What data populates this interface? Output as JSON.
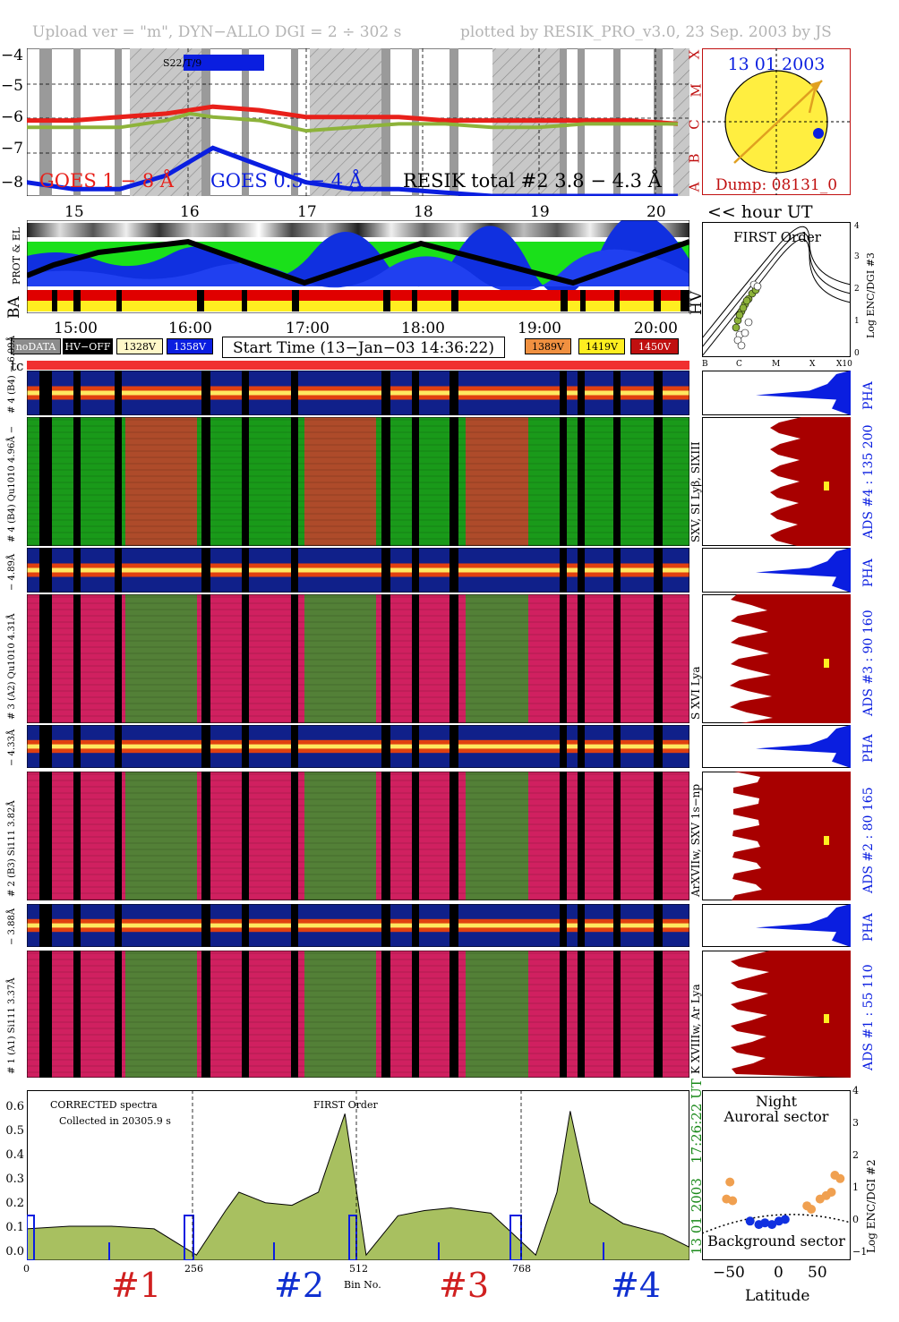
{
  "header": {
    "upload": "Upload ver = \"m\", DYN−ALLO DGI =   2 ÷ 302 s",
    "plotted": "plotted by RESIK_PRO_v3.0, 23 Sep. 2003 by JS"
  },
  "goes_panel": {
    "yticks": [
      "−4",
      "−5",
      "−6",
      "−7",
      "−8"
    ],
    "classes": [
      "A",
      "B",
      "C",
      "M",
      "X"
    ],
    "legend_goes18": "GOES 1 − 8 Å",
    "legend_goes054": "GOES 0.5 − 4 Å",
    "legend_resik": "RESIK total #2  3.8 − 4.3 Å",
    "saa_tag": "S22/T/9",
    "hours": [
      "15",
      "16",
      "17",
      "18",
      "19",
      "20"
    ],
    "hour_ut": "<< hour UT",
    "colors": {
      "goes18": "#e8201a",
      "goes054": "#0a1ee0",
      "resik": "#8db33a"
    }
  },
  "sun_panel": {
    "date": "13 01 2003",
    "dump": "Dump: 08131_0"
  },
  "status_panel": {
    "prot_el": "PROT & EL",
    "ba": "BA",
    "hv": "HV"
  },
  "time_axis": [
    "15:00",
    "16:00",
    "17:00",
    "18:00",
    "19:00",
    "20:00"
  ],
  "legend": {
    "nodata": "noDATA",
    "hvoff": "HV−OFF",
    "v1328": "1328V",
    "v1358": "1358V",
    "start_time": "Start Time (13−Jan−03 14:36:22)",
    "v1389": "1389V",
    "v1419": "1419V",
    "v1450": "1450V",
    "tc": "tc"
  },
  "first_order_panel": {
    "title": "FIRST Order",
    "ylabel": "Log ENC/DGI #3",
    "yticks": [
      "0",
      "1",
      "2",
      "3",
      "4"
    ],
    "xticks": [
      "B",
      "C",
      "M",
      "X",
      "X10"
    ]
  },
  "channels": [
    {
      "pha_label": "# 4 (B4)  − 6.09Å",
      "label": "# 4 (B4) Qu1010 4.96Å −",
      "lines": "SXV, SI Lyβ, SIXIII",
      "ads": "ADS #4 :  135 200"
    },
    {
      "pha_label": "− 4.89Å",
      "label": "# 3 (A2) Qu1010 4.31Å",
      "lines": "S XVI Lya",
      "ads": "ADS #3 :  90 160"
    },
    {
      "pha_label": "− 4.33Å",
      "label": "# 2 (B3) Si111 3.82Å",
      "lines": "ArXVIIw, SXV 1s−np",
      "ads": "ADS #2 :  80 165"
    },
    {
      "pha_label": "− 3.88Å",
      "label": "# 1 (A1) Si111 3.37Å",
      "lines": "K XVIIIw, Ar Lya",
      "ads": "ADS #1 :  55 110"
    }
  ],
  "pha": "PHA",
  "spectrum_panel": {
    "corrected": "CORRECTED spectra",
    "collected": "Collected in 20305.9 s",
    "first_order": "FIRST Order",
    "yticks": [
      "0.0",
      "0.1",
      "0.2",
      "0.3",
      "0.4",
      "0.5",
      "0.6"
    ],
    "xticks": [
      "0",
      "256",
      "512",
      "768"
    ],
    "xlabel": "Bin No.",
    "timestamp_date": "13 01 2003",
    "timestamp_time": "17:26:22 UT"
  },
  "detectors": [
    "#1",
    "#2",
    "#3",
    "#4"
  ],
  "lat_panel": {
    "title1": "Night",
    "title2": "Auroral sector",
    "background": "Background sector",
    "ylabel": "Log ENC/DGI #2",
    "yticks": [
      "−1",
      "0",
      "1",
      "2",
      "3",
      "4"
    ],
    "xticks": [
      "−50",
      "0",
      "50"
    ],
    "xlabel": "Latitude"
  },
  "chart_data": [
    {
      "type": "line",
      "title": "",
      "xlabel": "hour UT",
      "x": [
        14.6,
        15.0,
        15.4,
        15.8,
        16.0,
        16.2,
        16.6,
        17.0,
        17.4,
        17.8,
        18.2,
        18.6,
        19.0,
        19.4,
        19.8,
        20.2
      ],
      "series": [
        {
          "name": "GOES 1 − 8 Å",
          "values": [
            -6.0,
            -6.0,
            -5.9,
            -5.8,
            -5.7,
            -5.6,
            -5.7,
            -5.9,
            -5.9,
            -5.9,
            -6.0,
            -6.0,
            -6.0,
            -6.0,
            -6.0,
            -6.1
          ]
        },
        {
          "name": "GOES 0.5 − 4 Å",
          "values": [
            -7.8,
            -8.0,
            -8.0,
            -7.6,
            -7.2,
            -6.8,
            -7.3,
            -7.8,
            -8.0,
            -8.0,
            -8.1,
            -8.2,
            -8.2,
            -8.2,
            -8.2,
            -8.2
          ]
        },
        {
          "name": "RESIK total #2  3.8 − 4.3 Å",
          "values": [
            -6.2,
            -6.2,
            -6.2,
            -6.0,
            -5.8,
            -5.9,
            -6.0,
            -6.3,
            -6.2,
            -6.1,
            -6.1,
            -6.2,
            -6.2,
            -6.1,
            -6.1,
            -6.1
          ]
        }
      ],
      "ylim": [
        -8.2,
        -3.9
      ]
    },
    {
      "type": "area",
      "xlabel": "Bin No.",
      "x": [
        0,
        64,
        128,
        192,
        256,
        300,
        320,
        340,
        360,
        400,
        440,
        480,
        512,
        560,
        600,
        640,
        700,
        768,
        800,
        820,
        850,
        900,
        960,
        1000
      ],
      "values": [
        0.12,
        0.13,
        0.13,
        0.12,
        0.02,
        0.19,
        0.26,
        0.24,
        0.22,
        0.21,
        0.26,
        0.56,
        0.02,
        0.17,
        0.19,
        0.2,
        0.18,
        0.02,
        0.26,
        0.57,
        0.22,
        0.14,
        0.1,
        0.05
      ],
      "ylim": [
        0,
        0.65
      ]
    },
    {
      "type": "scatter",
      "xlabel": "Latitude",
      "ylabel": "Log ENC/DGI #2",
      "series": [
        {
          "values": [
            [
              -48,
              1.3
            ],
            [
              -52,
              0.8
            ],
            [
              -45,
              0.75
            ],
            [
              55,
              0.8
            ],
            [
              62,
              0.9
            ],
            [
              68,
              1.0
            ],
            [
              72,
              1.5
            ],
            [
              78,
              1.4
            ],
            [
              45,
              0.5
            ],
            [
              40,
              0.6
            ]
          ]
        },
        {
          "values": [
            [
              -25,
              0.15
            ],
            [
              -15,
              0.05
            ],
            [
              -8,
              0.1
            ],
            [
              0,
              0.05
            ],
            [
              8,
              0.15
            ],
            [
              15,
              0.2
            ]
          ]
        }
      ],
      "ylim": [
        -1,
        4
      ],
      "xlim": [
        -80,
        90
      ]
    }
  ]
}
